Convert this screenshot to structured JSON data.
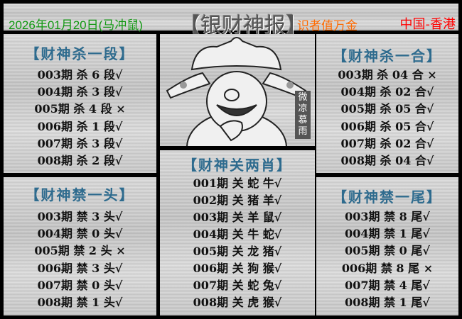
{
  "header": {
    "date": "2026年01月20日(马冲鼠)",
    "title": "【银财神报】",
    "slogan": "识者值万金",
    "region": "中国-香港"
  },
  "image": {
    "watermark": "微凉慕雨",
    "icon": "god-of-wealth-illustration"
  },
  "panels": [
    {
      "id": "kill-segment",
      "title": "【财神杀一段】",
      "rows": [
        "003期 杀 6 段√",
        "004期 杀 3 段√",
        "005期 杀 4 段 ×",
        "006期 杀 1 段√",
        "007期 杀 3 段√",
        "008期 杀 2 段√"
      ]
    },
    {
      "id": "ban-head",
      "title": "【财神禁一头】",
      "rows": [
        "003期 禁 3 头√",
        "004期 禁 0 头√",
        "005期 禁 2 头 ×",
        "006期 禁 3 头√",
        "007期 禁 0 头√",
        "008期 禁 1 头√"
      ]
    },
    {
      "id": "two-zodiacs",
      "title": "【财神关两肖】",
      "rows": [
        "001期 关 蛇 牛√",
        "002期 关 猪 羊√",
        "003期 关 羊 鼠√",
        "004期 关 牛 蛇√",
        "005期 关 龙 猪√",
        "006期 关 狗 猴√",
        "007期 关 蛇 兔√",
        "008期 关 虎 猴√"
      ]
    },
    {
      "id": "kill-combo",
      "title": "【财神杀一合】",
      "rows": [
        "003期 杀 04 合 ×",
        "004期 杀 02 合√",
        "005期 杀 05 合√",
        "006期 杀 05 合√",
        "007期 杀 02 合√",
        "008期 杀 04 合√"
      ]
    },
    {
      "id": "ban-tail",
      "title": "【财神禁一尾】",
      "rows": [
        "003期 禁 8 尾√",
        "004期 禁 1 尾√",
        "005期 禁 0 尾√",
        "006期 禁 8 尾 ×",
        "007期 禁 4 尾√",
        "008期 禁 1 尾√"
      ]
    }
  ]
}
